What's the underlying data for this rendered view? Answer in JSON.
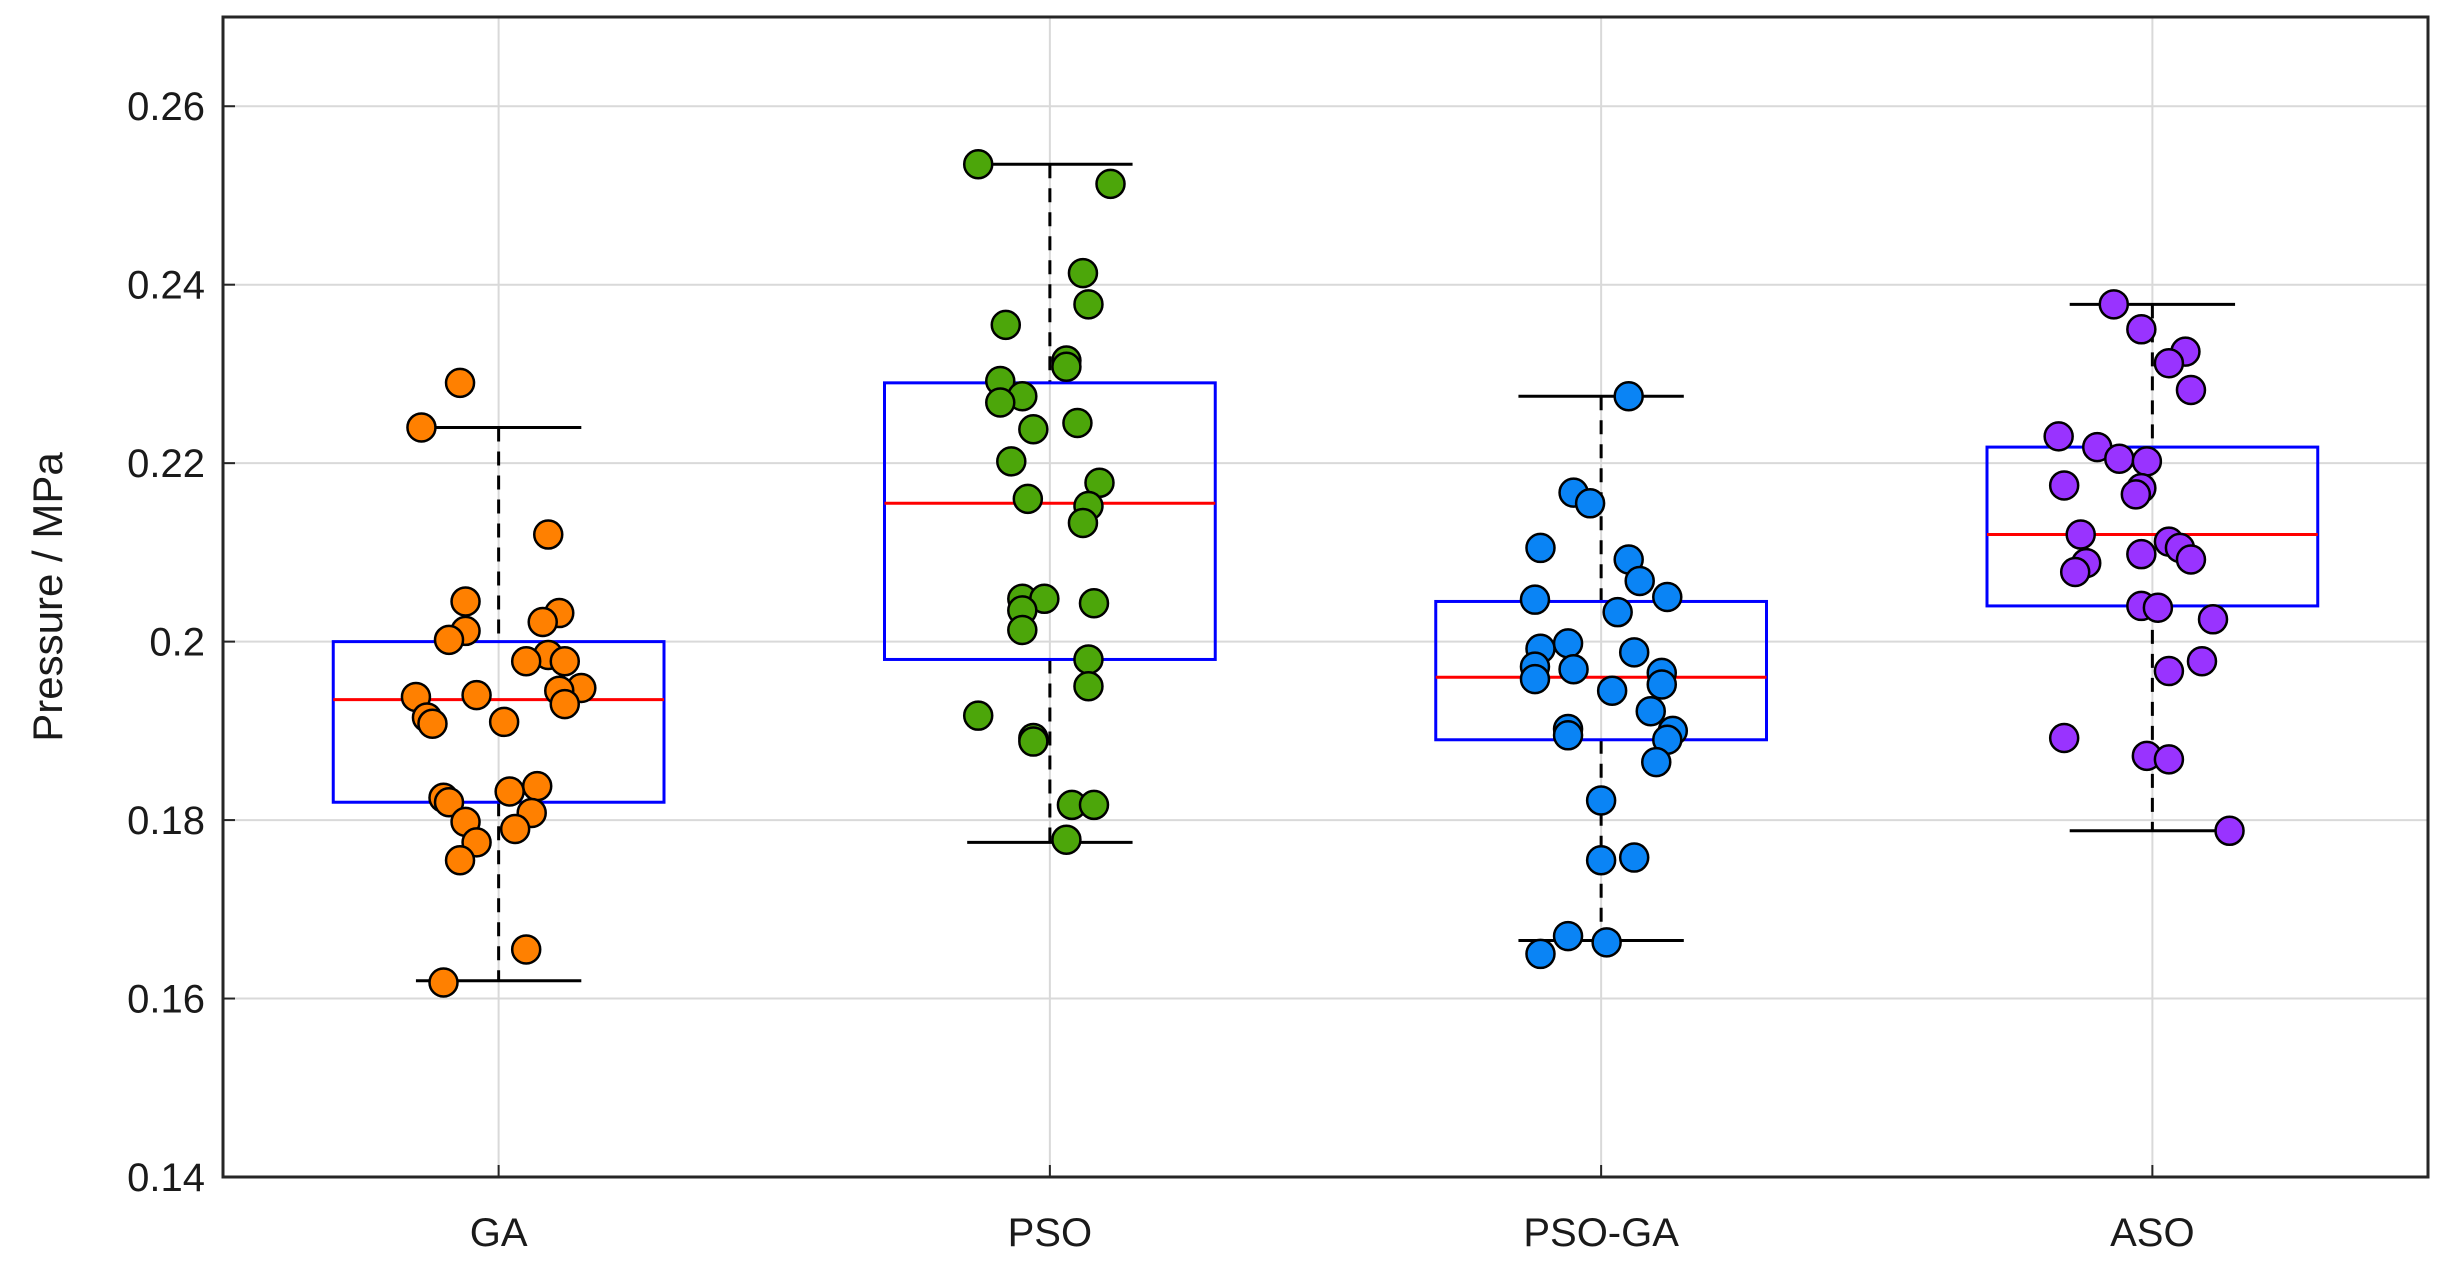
{
  "chart_data": {
    "type": "box",
    "title": "",
    "xlabel": "",
    "ylabel": "Pressure / MPa",
    "ylim": [
      0.14,
      0.27
    ],
    "yticks": [
      0.14,
      0.16,
      0.18,
      0.2,
      0.22,
      0.24,
      0.26
    ],
    "ytick_labels": [
      "0.14",
      "0.16",
      "0.18",
      "0.2",
      "0.22",
      "0.24",
      "0.26"
    ],
    "grid": true,
    "categories": [
      "GA",
      "PSO",
      "PSO-GA",
      "ASO"
    ],
    "box_color": "#0000ff",
    "median_color": "#ff0000",
    "series": [
      {
        "point_color": "#ff8000",
        "q1": 0.182,
        "median": 0.1935,
        "q3": 0.2,
        "whisker_low": 0.162,
        "whisker_high": 0.224,
        "points": [
          {
            "jitter": -0.07,
            "y": 0.229
          },
          {
            "jitter": -0.14,
            "y": 0.224
          },
          {
            "jitter": 0.09,
            "y": 0.212
          },
          {
            "jitter": -0.06,
            "y": 0.2045
          },
          {
            "jitter": 0.11,
            "y": 0.2032
          },
          {
            "jitter": 0.08,
            "y": 0.2022
          },
          {
            "jitter": -0.06,
            "y": 0.2012
          },
          {
            "jitter": -0.09,
            "y": 0.2002
          },
          {
            "jitter": 0.09,
            "y": 0.1985
          },
          {
            "jitter": 0.05,
            "y": 0.1978
          },
          {
            "jitter": 0.12,
            "y": 0.1978
          },
          {
            "jitter": 0.15,
            "y": 0.1948
          },
          {
            "jitter": 0.11,
            "y": 0.1945
          },
          {
            "jitter": -0.04,
            "y": 0.194
          },
          {
            "jitter": -0.15,
            "y": 0.1938
          },
          {
            "jitter": 0.12,
            "y": 0.193
          },
          {
            "jitter": -0.13,
            "y": 0.1915
          },
          {
            "jitter": -0.12,
            "y": 0.1908
          },
          {
            "jitter": 0.01,
            "y": 0.191
          },
          {
            "jitter": 0.07,
            "y": 0.1838
          },
          {
            "jitter": 0.02,
            "y": 0.1832
          },
          {
            "jitter": -0.1,
            "y": 0.1825
          },
          {
            "jitter": -0.09,
            "y": 0.182
          },
          {
            "jitter": 0.06,
            "y": 0.1808
          },
          {
            "jitter": -0.06,
            "y": 0.1798
          },
          {
            "jitter": 0.03,
            "y": 0.179
          },
          {
            "jitter": -0.04,
            "y": 0.1775
          },
          {
            "jitter": -0.07,
            "y": 0.1755
          },
          {
            "jitter": 0.05,
            "y": 0.1655
          },
          {
            "jitter": -0.1,
            "y": 0.1618
          }
        ]
      },
      {
        "point_color": "#4ca60a",
        "q1": 0.198,
        "median": 0.2155,
        "q3": 0.229,
        "whisker_low": 0.1775,
        "whisker_high": 0.2535,
        "points": [
          {
            "jitter": -0.13,
            "y": 0.2535
          },
          {
            "jitter": 0.11,
            "y": 0.2513
          },
          {
            "jitter": 0.06,
            "y": 0.2413
          },
          {
            "jitter": 0.07,
            "y": 0.2378
          },
          {
            "jitter": -0.08,
            "y": 0.2355
          },
          {
            "jitter": 0.03,
            "y": 0.2315
          },
          {
            "jitter": 0.03,
            "y": 0.2308
          },
          {
            "jitter": -0.09,
            "y": 0.2292
          },
          {
            "jitter": -0.05,
            "y": 0.2275
          },
          {
            "jitter": -0.09,
            "y": 0.2268
          },
          {
            "jitter": 0.05,
            "y": 0.2245
          },
          {
            "jitter": -0.03,
            "y": 0.2238
          },
          {
            "jitter": -0.07,
            "y": 0.2202
          },
          {
            "jitter": 0.09,
            "y": 0.2178
          },
          {
            "jitter": -0.04,
            "y": 0.216
          },
          {
            "jitter": 0.07,
            "y": 0.2152
          },
          {
            "jitter": 0.06,
            "y": 0.2133
          },
          {
            "jitter": -0.05,
            "y": 0.2048
          },
          {
            "jitter": 0.08,
            "y": 0.2043
          },
          {
            "jitter": -0.01,
            "y": 0.2048
          },
          {
            "jitter": -0.05,
            "y": 0.2035
          },
          {
            "jitter": -0.05,
            "y": 0.2013
          },
          {
            "jitter": 0.07,
            "y": 0.198
          },
          {
            "jitter": 0.07,
            "y": 0.195
          },
          {
            "jitter": -0.13,
            "y": 0.1917
          },
          {
            "jitter": -0.03,
            "y": 0.1892
          },
          {
            "jitter": -0.03,
            "y": 0.1888
          },
          {
            "jitter": 0.04,
            "y": 0.1817
          },
          {
            "jitter": 0.08,
            "y": 0.1817
          },
          {
            "jitter": 0.03,
            "y": 0.1778
          }
        ]
      },
      {
        "point_color": "#0a84f5",
        "q1": 0.189,
        "median": 0.196,
        "q3": 0.2045,
        "whisker_low": 0.1665,
        "whisker_high": 0.2275,
        "points": [
          {
            "jitter": 0.05,
            "y": 0.2275
          },
          {
            "jitter": -0.05,
            "y": 0.2167
          },
          {
            "jitter": -0.02,
            "y": 0.2155
          },
          {
            "jitter": -0.11,
            "y": 0.2105
          },
          {
            "jitter": 0.05,
            "y": 0.2092
          },
          {
            "jitter": 0.07,
            "y": 0.2068
          },
          {
            "jitter": 0.12,
            "y": 0.205
          },
          {
            "jitter": -0.12,
            "y": 0.2047
          },
          {
            "jitter": 0.03,
            "y": 0.2033
          },
          {
            "jitter": -0.06,
            "y": 0.1998
          },
          {
            "jitter": -0.11,
            "y": 0.1992
          },
          {
            "jitter": 0.06,
            "y": 0.1988
          },
          {
            "jitter": -0.12,
            "y": 0.1972
          },
          {
            "jitter": -0.05,
            "y": 0.1969
          },
          {
            "jitter": 0.11,
            "y": 0.1965
          },
          {
            "jitter": -0.12,
            "y": 0.1958
          },
          {
            "jitter": 0.11,
            "y": 0.1952
          },
          {
            "jitter": 0.02,
            "y": 0.1945
          },
          {
            "jitter": 0.09,
            "y": 0.1922
          },
          {
            "jitter": -0.06,
            "y": 0.1902
          },
          {
            "jitter": 0.13,
            "y": 0.19
          },
          {
            "jitter": -0.06,
            "y": 0.1895
          },
          {
            "jitter": 0.12,
            "y": 0.189
          },
          {
            "jitter": 0.1,
            "y": 0.1865
          },
          {
            "jitter": 0,
            "y": 0.1822
          },
          {
            "jitter": 0.06,
            "y": 0.1758
          },
          {
            "jitter": 0,
            "y": 0.1755
          },
          {
            "jitter": -0.06,
            "y": 0.167
          },
          {
            "jitter": 0.01,
            "y": 0.1663
          },
          {
            "jitter": -0.11,
            "y": 0.165
          }
        ]
      },
      {
        "point_color": "#9933ff",
        "q1": 0.204,
        "median": 0.212,
        "q3": 0.2218,
        "whisker_low": 0.1788,
        "whisker_high": 0.2378,
        "points": [
          {
            "jitter": -0.07,
            "y": 0.2378
          },
          {
            "jitter": -0.02,
            "y": 0.235
          },
          {
            "jitter": 0.06,
            "y": 0.2325
          },
          {
            "jitter": 0.03,
            "y": 0.2312
          },
          {
            "jitter": 0.07,
            "y": 0.2282
          },
          {
            "jitter": -0.17,
            "y": 0.223
          },
          {
            "jitter": -0.1,
            "y": 0.2218
          },
          {
            "jitter": -0.06,
            "y": 0.2205
          },
          {
            "jitter": -0.01,
            "y": 0.2202
          },
          {
            "jitter": -0.16,
            "y": 0.2175
          },
          {
            "jitter": -0.02,
            "y": 0.2172
          },
          {
            "jitter": -0.03,
            "y": 0.2165
          },
          {
            "jitter": -0.13,
            "y": 0.212
          },
          {
            "jitter": 0.03,
            "y": 0.2112
          },
          {
            "jitter": 0.05,
            "y": 0.2105
          },
          {
            "jitter": -0.02,
            "y": 0.2098
          },
          {
            "jitter": 0.07,
            "y": 0.2092
          },
          {
            "jitter": -0.12,
            "y": 0.2088
          },
          {
            "jitter": -0.14,
            "y": 0.2078
          },
          {
            "jitter": -0.02,
            "y": 0.204
          },
          {
            "jitter": 0.01,
            "y": 0.2038
          },
          {
            "jitter": 0.11,
            "y": 0.2025
          },
          {
            "jitter": 0.09,
            "y": 0.1978
          },
          {
            "jitter": 0.03,
            "y": 0.1967
          },
          {
            "jitter": -0.16,
            "y": 0.1892
          },
          {
            "jitter": -0.01,
            "y": 0.1872
          },
          {
            "jitter": 0.03,
            "y": 0.1868
          },
          {
            "jitter": 0.14,
            "y": 0.1788
          }
        ]
      }
    ]
  }
}
